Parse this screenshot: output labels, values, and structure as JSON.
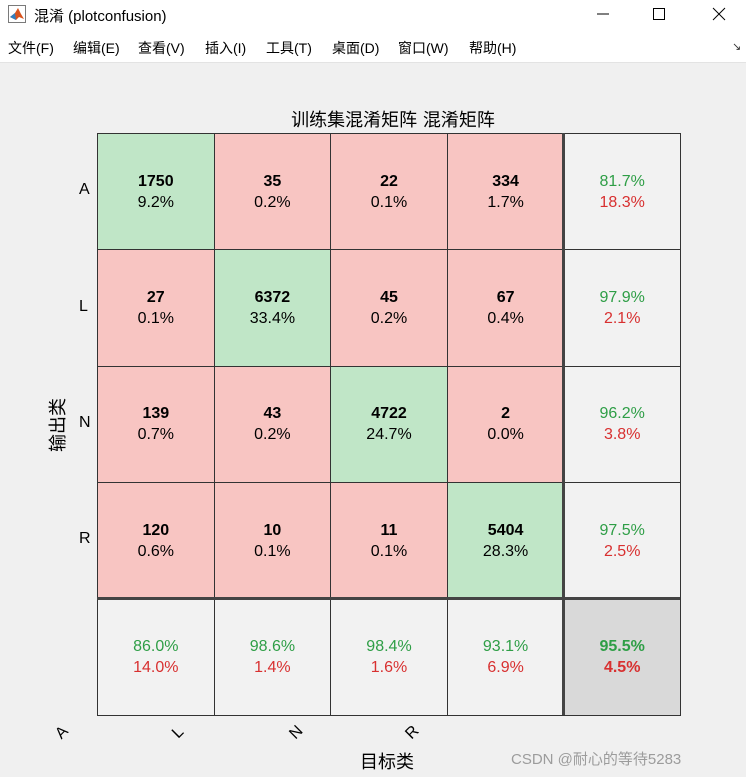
{
  "window": {
    "title": "混淆 (plotconfusion)",
    "icon": "matlab-icon"
  },
  "menu": [
    {
      "label": "文件(F)"
    },
    {
      "label": "编辑(E)"
    },
    {
      "label": "查看(V)"
    },
    {
      "label": "插入(I)"
    },
    {
      "label": "工具(T)"
    },
    {
      "label": "桌面(D)"
    },
    {
      "label": "窗口(W)"
    },
    {
      "label": "帮助(H)"
    }
  ],
  "figure": {
    "title": "训练集混淆矩阵 混淆矩阵",
    "ylabel": "输出类",
    "xlabel": "目标类",
    "row_labels": [
      "A",
      "L",
      "N",
      "R"
    ],
    "col_labels": [
      "A",
      "L",
      "N",
      "R"
    ],
    "matrix": [
      [
        {
          "count": "1750",
          "pct": "9.2%"
        },
        {
          "count": "35",
          "pct": "0.2%"
        },
        {
          "count": "22",
          "pct": "0.1%"
        },
        {
          "count": "334",
          "pct": "1.7%"
        }
      ],
      [
        {
          "count": "27",
          "pct": "0.1%"
        },
        {
          "count": "6372",
          "pct": "33.4%"
        },
        {
          "count": "45",
          "pct": "0.2%"
        },
        {
          "count": "67",
          "pct": "0.4%"
        }
      ],
      [
        {
          "count": "139",
          "pct": "0.7%"
        },
        {
          "count": "43",
          "pct": "0.2%"
        },
        {
          "count": "4722",
          "pct": "24.7%"
        },
        {
          "count": "2",
          "pct": "0.0%"
        }
      ],
      [
        {
          "count": "120",
          "pct": "0.6%"
        },
        {
          "count": "10",
          "pct": "0.1%"
        },
        {
          "count": "11",
          "pct": "0.1%"
        },
        {
          "count": "5404",
          "pct": "28.3%"
        }
      ]
    ],
    "row_summary": [
      {
        "good": "81.7%",
        "bad": "18.3%"
      },
      {
        "good": "97.9%",
        "bad": "2.1%"
      },
      {
        "good": "96.2%",
        "bad": "3.8%"
      },
      {
        "good": "97.5%",
        "bad": "2.5%"
      }
    ],
    "col_summary": [
      {
        "good": "86.0%",
        "bad": "14.0%"
      },
      {
        "good": "98.6%",
        "bad": "1.4%"
      },
      {
        "good": "98.4%",
        "bad": "1.6%"
      },
      {
        "good": "93.1%",
        "bad": "6.9%"
      }
    ],
    "total": {
      "good": "95.5%",
      "bad": "4.5%"
    },
    "colors": {
      "diagonal": "#c0e6c7",
      "off_diagonal": "#f8c5c2",
      "summary": "#f2f2f2",
      "total": "#d9d9d9",
      "good_text": "#2e9e46",
      "bad_text": "#d83030"
    }
  },
  "watermark": "CSDN @耐心的等待5283"
}
